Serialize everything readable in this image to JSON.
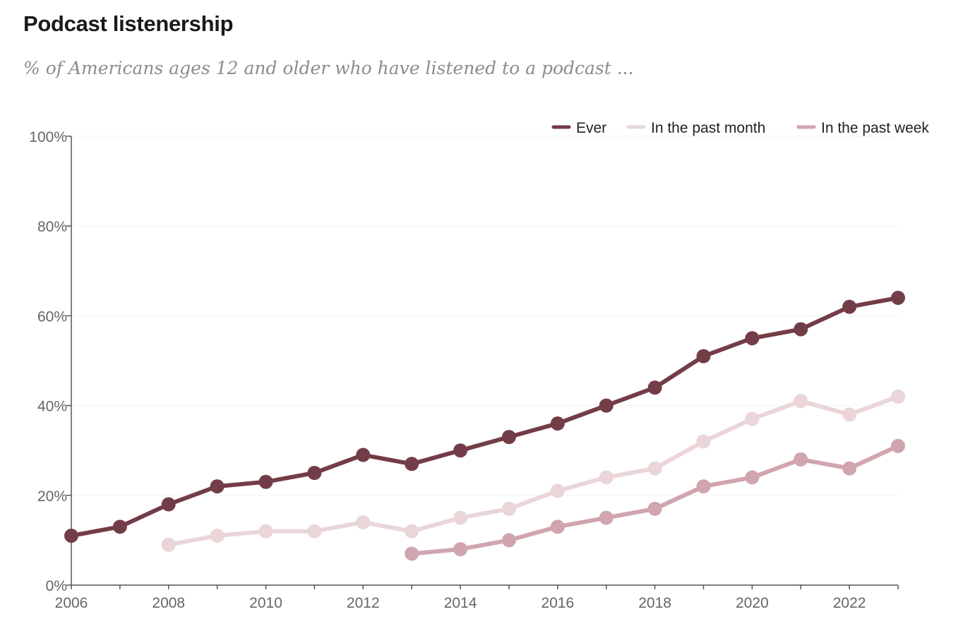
{
  "header": {
    "title": "Podcast listenership",
    "subtitle": "% of Americans ages 12 and older who have listened to a podcast ..."
  },
  "colors": {
    "ever": "#733d47",
    "past_month": "#ead5d8",
    "past_week": "#d1a5ae",
    "axis": "#555555",
    "grid": "#f3f3f3"
  },
  "chart_data": {
    "type": "line",
    "title": "Podcast listenership",
    "subtitle": "% of Americans ages 12 and older who have listened to a podcast ...",
    "xlim": [
      2006,
      2023
    ],
    "ylim": [
      0,
      100
    ],
    "x_ticks": [
      "2006",
      "2008",
      "2010",
      "2012",
      "2014",
      "2016",
      "2018",
      "2020",
      "2022"
    ],
    "y_ticks": [
      "0%",
      "20%",
      "40%",
      "60%",
      "80%",
      "100%"
    ],
    "grid": true,
    "legend_position": "top-right",
    "series": [
      {
        "name": "Ever",
        "color": "#733d47",
        "x": [
          2006,
          2007,
          2008,
          2009,
          2010,
          2011,
          2012,
          2013,
          2014,
          2015,
          2016,
          2017,
          2018,
          2019,
          2020,
          2021,
          2022,
          2023
        ],
        "values": [
          11,
          13,
          18,
          22,
          23,
          25,
          29,
          27,
          30,
          33,
          36,
          40,
          44,
          51,
          55,
          57,
          62,
          64
        ]
      },
      {
        "name": "In the past month",
        "color": "#ead5d8",
        "x": [
          2008,
          2009,
          2010,
          2011,
          2012,
          2013,
          2014,
          2015,
          2016,
          2017,
          2018,
          2019,
          2020,
          2021,
          2022,
          2023
        ],
        "values": [
          9,
          11,
          12,
          12,
          14,
          12,
          15,
          17,
          21,
          24,
          26,
          32,
          37,
          41,
          38,
          42
        ]
      },
      {
        "name": "In the past week",
        "color": "#d1a5ae",
        "x": [
          2013,
          2014,
          2015,
          2016,
          2017,
          2018,
          2019,
          2020,
          2021,
          2022,
          2023
        ],
        "values": [
          7,
          8,
          10,
          13,
          15,
          17,
          22,
          24,
          28,
          26,
          31
        ]
      }
    ]
  }
}
